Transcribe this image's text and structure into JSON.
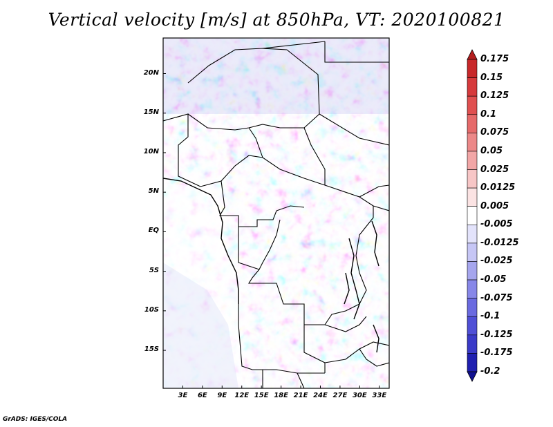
{
  "title": "Vertical velocity [m/s] at 850hPa, VT: 2020100821",
  "credit": "GrADS: IGES/COLA",
  "map": {
    "lat_labels": [
      "20N",
      "15N",
      "10N",
      "5N",
      "EQ",
      "5S",
      "10S",
      "15S"
    ],
    "lat_values": [
      20,
      15,
      10,
      5,
      0,
      -5,
      -10,
      -15
    ],
    "lon_labels": [
      "3E",
      "6E",
      "9E",
      "12E",
      "15E",
      "18E",
      "21E",
      "24E",
      "27E",
      "30E",
      "33E"
    ],
    "lon_values": [
      3,
      6,
      9,
      12,
      15,
      18,
      21,
      24,
      27,
      30,
      33
    ],
    "lon_range": [
      0,
      34.5
    ],
    "lat_range": [
      -19.8,
      24.5
    ]
  },
  "colorbar": {
    "labels": [
      "0.175",
      "0.15",
      "0.125",
      "0.1",
      "0.075",
      "0.05",
      "0.025",
      "0.0125",
      "0.005",
      "-0.005",
      "-0.0125",
      "-0.025",
      "-0.05",
      "-0.075",
      "-0.1",
      "-0.125",
      "-0.175",
      "-0.2"
    ],
    "colors": [
      "#b41e1e",
      "#c8282a",
      "#d63a3c",
      "#e05050",
      "#e66a6a",
      "#ec8888",
      "#f2a6a6",
      "#f7c6c6",
      "#fbe3e3",
      "#ffffff",
      "#e3e3fb",
      "#c6c6f5",
      "#a6a6ee",
      "#8787e8",
      "#6a6ae0",
      "#4f4fd6",
      "#3a3ac8",
      "#2020b0",
      "#101090"
    ]
  }
}
